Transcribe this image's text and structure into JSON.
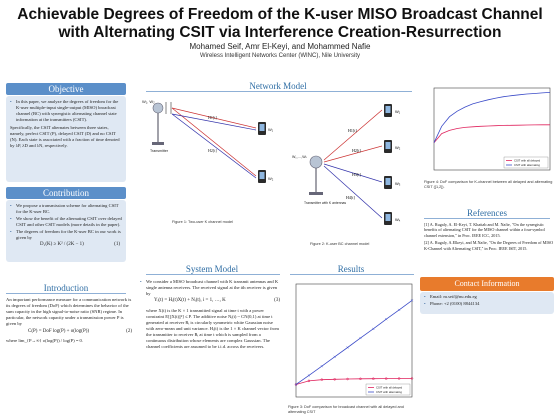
{
  "header": {
    "title": "Achievable Degrees of Freedom of the K-user MISO Broadcast Channel with Alternating CSIT via Interference Creation-Resurrection",
    "authors": "Mohamed Seif, Amr El-Keyi, and Mohammed Nafie",
    "affiliation": "Wireless Intelligent Networks Center (WINC), Nile University"
  },
  "objective": {
    "title": "Objective",
    "p1": "In this paper, we analyze the degrees of freedom for the K-user multiple-input single-output (MISO) broadcast channel (BC) with synergistic alternating channel state information at the transmitters (CSIT).",
    "p2": "Specifically, the CSIT alternates between three states, namely, perfect CSIT (P), delayed CSIT (D) and no CSIT (N). Each state is associated with a fraction of time denoted by λP, λD and λN, respectively."
  },
  "contribution": {
    "title": "Contribution",
    "items": [
      "We propose a transmission scheme for alternating CSIT for the K-user BC.",
      "We show the benefit of the alternating CSIT over delayed CSIT and other CSIT models (more details in the paper).",
      "The degrees of freedom for the K-user BC in our work is given by"
    ],
    "eq": "D₁(K) ≥ K² / (2K − 1)",
    "eq_num": "(1)"
  },
  "introduction": {
    "title": "Introduction",
    "p1": "An important performance measure for a communication network is its degrees of freedom (DoF) which determines the behavior of the sum capacity in the high signal-to-noise ratio (SNR) regime. In particular, the network capacity under a transmission power P is given by",
    "eq": "C(P) = DoF log(P) + o(log(P))",
    "eq_num": "(2)",
    "p2": "where lim_{P→∞} o(log(P)) / log(P) = 0."
  },
  "network_model": {
    "title": "Network Model",
    "fig1_caption": "Figure 1: Two-user K channel model",
    "fig2_caption": "Figure 2: K-user BC channel model",
    "transmitter_label": "Transmitter",
    "transmitter_k_label": "Transmitter with K antennas",
    "users": [
      "Rx1",
      "Rx2"
    ],
    "channels": [
      "H1[t]",
      "H2[t]",
      "H3[t]",
      "H4[t]"
    ]
  },
  "system_model": {
    "title": "System Model",
    "items": [
      "We consider a MISO broadcast channel with K transmit antennas and K single antenna receivers. The received signal at the ith receiver is given by",
      "where X(t) is the K × 1 transmitted signal at time t with a power constraint E[||X(t)||²] ≤ P. The additive noise Nᵢ(t) ~ CN(0,1) at time t generated at receiver Rᵢ is circularly symmetric white Gaussian noise with zero-mean and unit variance. Hᵢ(t) is the 1 × K channel vector from the transmitter to receiver Rᵢ at time t which is sampled from a continuous distribution whose elements are complex Gaussian. The channel coefficients are assumed to be i.i.d. across the receivers."
    ],
    "eq": "Yᵢ(t) = Hᵢ(t)X(t) + Nᵢ(t),  i = 1, …, K",
    "eq_num": "(3)"
  },
  "results": {
    "title": "Results",
    "caption": "Figure 3: DoF comparison for broadcast channel with all delayed and alternating CSIT"
  },
  "fig4": {
    "caption": "Figure 4: DoF comparison for K-channel between all delayed and alternating CSIT ([1,2])."
  },
  "references": {
    "title": "References",
    "items": [
      "[1] A. Rugaly, A. El-Keyi, T. Khattab and M. Nafie, \"On the synergistic benefits of alternating CSIT for the MISO channel within a four-symbol channel extension,\" in Proc. IEEE ICC, 2015.",
      "[2] A. Rugaly, A.Elkeyi, and M.Nafie, \"On the Degrees of Freedom of MISO K-Channel with Alternating CSIT,\" in Proc. IEEE ISIT, 2015."
    ]
  },
  "contact": {
    "title": "Contact Information",
    "email": "Email: m.seif@nu.edu.eg",
    "phone": "Phone: +2 (0100) 8844134"
  },
  "chart_data": [
    {
      "type": "line",
      "title": "",
      "xlabel": "",
      "ylabel": "",
      "x": [
        2,
        4,
        6,
        8,
        10,
        12,
        14,
        16,
        18,
        20
      ],
      "series": [
        {
          "name": "CSIT with all delayed",
          "values": [
            1.33,
            1.71,
            1.84,
            1.88,
            1.91,
            1.93,
            1.94,
            1.95,
            1.96,
            1.97
          ]
        },
        {
          "name": "CSIT with alternating",
          "values": [
            1.33,
            2.29,
            3.27,
            4.27,
            5.26,
            6.26,
            7.24,
            8.26,
            9.25,
            10.26
          ]
        }
      ],
      "colors": [
        "#e0245e",
        "#3b4bc8"
      ],
      "legend": "bottom-right",
      "grid": false,
      "ylim": [
        0,
        12
      ]
    },
    {
      "type": "line",
      "title": "",
      "xlabel": "",
      "ylabel": "",
      "x": [
        1,
        2,
        3,
        4,
        5,
        6,
        7,
        8,
        9,
        10,
        11,
        12,
        13,
        14,
        15,
        16
      ],
      "series": [
        {
          "name": "CSIT with all delayed",
          "values": [
            1,
            1.33,
            1.45,
            1.52,
            1.56,
            1.58,
            1.6,
            1.61,
            1.62,
            1.63,
            1.635,
            1.64,
            1.645,
            1.65,
            1.652,
            1.655
          ]
        },
        {
          "name": "CSIT with alternating",
          "values": [
            1,
            1.6,
            1.95,
            2.15,
            2.3,
            2.42,
            2.5,
            2.57,
            2.63,
            2.68,
            2.72,
            2.75,
            2.78,
            2.8,
            2.82,
            2.84
          ]
        }
      ],
      "colors": [
        "#e0245e",
        "#3b4bc8"
      ],
      "legend": "bottom-right",
      "grid": false,
      "ylim": [
        0,
        3
      ]
    }
  ]
}
